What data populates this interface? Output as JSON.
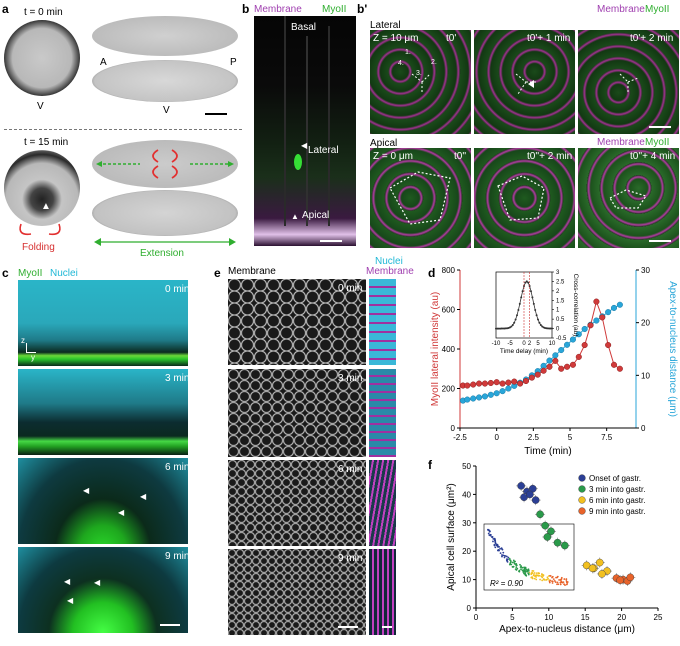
{
  "panels": {
    "a": {
      "letter": "a",
      "t0": "t = 0 min",
      "t15": "t = 15 min",
      "A": "A",
      "P": "P",
      "V1": "V",
      "V2": "V",
      "V3": "V",
      "folding": "Folding",
      "extension": "Extension"
    },
    "b": {
      "letter": "b",
      "membrane": "Membrane",
      "myoii": "MyoII",
      "basal": "Basal",
      "lateral": "Lateral",
      "apical": "Apical"
    },
    "bp": {
      "letter": "b'",
      "lateral_title": "Lateral",
      "apical_title": "Apical",
      "membrane": "Membrane",
      "myoii": "MyoII",
      "membrane2": "Membrane",
      "myoii2": "MyoII",
      "z1": "Z = 10 μm",
      "z2": "Z = 0 μm",
      "t_lat": [
        "t0'",
        "t0'+ 1 min",
        "t0'+ 2 min"
      ],
      "t_api": [
        "t0''",
        "t0''+ 2 min",
        "t0''+ 4 min"
      ],
      "nums": [
        "1.",
        "2.",
        "3.",
        "4."
      ]
    },
    "c": {
      "letter": "c",
      "myoii": "MyoII",
      "nuclei": "Nuclei",
      "times": [
        "0 min",
        "3 min",
        "6 min",
        "9 min"
      ],
      "axis_z": "z",
      "axis_y": "y"
    },
    "e": {
      "letter": "e",
      "membrane": "Membrane",
      "nuclei": "Nuclei",
      "membrane2": "Membrane",
      "times": [
        "0 min",
        "3 min",
        "6 min",
        "9 min"
      ]
    },
    "d": {
      "letter": "d",
      "inset_ylabel": "Cross-correlation (au)",
      "inset_xlabel": "Time delay (min)"
    },
    "f": {
      "letter": "f",
      "inset_r2": "R² = 0.90"
    }
  },
  "chart_data": [
    {
      "id": "d",
      "type": "line",
      "xlabel": "Time (min)",
      "ylabel": "MyoII lateral intensity (au)",
      "ylabel2": "Apex-to-nucleus distance (μm)",
      "xlim": [
        -2.5,
        9.5
      ],
      "ylim": [
        0,
        800
      ],
      "y2lim": [
        0,
        30
      ],
      "xticks": [
        "-2.5",
        "0",
        "2.5",
        "5",
        "7.5"
      ],
      "xtick_values": [
        -2.5,
        0,
        2.5,
        5,
        7.5
      ],
      "yticks": [
        "0",
        "200",
        "400",
        "600",
        "800"
      ],
      "y2ticks": [
        "0",
        "10",
        "20",
        "30"
      ],
      "color1": "#d03a3a",
      "color2": "#29a6d9",
      "series": [
        {
          "name": "MyoII lateral intensity",
          "axis": "left",
          "x": [
            -2.3,
            -2.0,
            -1.6,
            -1.2,
            -0.8,
            -0.4,
            0.0,
            0.4,
            0.8,
            1.2,
            1.6,
            2.0,
            2.4,
            2.8,
            3.2,
            3.6,
            4.0,
            4.4,
            4.8,
            5.2,
            5.6,
            6.0,
            6.4,
            6.8,
            7.2,
            7.6,
            8.0,
            8.4
          ],
          "y": [
            215,
            215,
            220,
            225,
            225,
            228,
            232,
            225,
            230,
            235,
            225,
            238,
            255,
            270,
            290,
            310,
            340,
            300,
            310,
            320,
            360,
            420,
            520,
            640,
            560,
            420,
            320,
            300
          ]
        },
        {
          "name": "Apex-to-nucleus distance",
          "axis": "right",
          "x": [
            -2.3,
            -2.0,
            -1.6,
            -1.2,
            -0.8,
            -0.4,
            0.0,
            0.4,
            0.8,
            1.2,
            1.6,
            2.0,
            2.4,
            2.8,
            3.2,
            3.6,
            4.0,
            4.4,
            4.8,
            5.2,
            5.6,
            6.0,
            6.4,
            6.8,
            7.2,
            7.6,
            8.0,
            8.4
          ],
          "y": [
            5.2,
            5.4,
            5.6,
            5.8,
            6.0,
            6.3,
            6.6,
            7.0,
            7.5,
            8.0,
            8.6,
            9.2,
            10.0,
            10.8,
            11.8,
            12.8,
            13.8,
            14.8,
            15.8,
            16.8,
            17.8,
            18.8,
            19.6,
            20.4,
            21.2,
            22.0,
            22.8,
            23.4
          ]
        }
      ],
      "inset": {
        "type": "line",
        "xlim": [
          -10,
          10
        ],
        "ylim": [
          -0.5,
          3.0
        ],
        "xticks": [
          "-10",
          "-5",
          "0",
          "2",
          "5",
          "10"
        ],
        "xtick_values": [
          -10,
          -5,
          0,
          2,
          5,
          10
        ],
        "yticks": [
          "-0.5",
          "0",
          "0.5",
          "1",
          "1.5",
          "2",
          "2.5",
          "3"
        ],
        "ytick_values": [
          -0.5,
          0,
          0.5,
          1,
          1.5,
          2,
          2.5,
          3
        ],
        "peak_x": 1.0,
        "peak_y": 2.5,
        "sigma": 2.2
      }
    },
    {
      "id": "f",
      "type": "scatter",
      "xlabel": "Apex-to-nucleus distance (μm)",
      "ylabel": "Apical cell surface (μm²)",
      "xlim": [
        0,
        25
      ],
      "ylim": [
        0,
        50
      ],
      "xticks": [
        "0",
        "5",
        "10",
        "15",
        "20",
        "25"
      ],
      "yticks": [
        "0",
        "10",
        "20",
        "30",
        "40",
        "50"
      ],
      "series": [
        {
          "name": "Onset of gastr.",
          "color": "#2b3f95",
          "x": [
            6.2,
            7.0,
            7.8,
            6.6,
            7.4,
            8.2
          ],
          "y": [
            43,
            41,
            42,
            39,
            40,
            38
          ]
        },
        {
          "name": "3 min into gastr.",
          "color": "#2a9a4a",
          "x": [
            8.8,
            9.5,
            10.3,
            11.2,
            9.8,
            12.2
          ],
          "y": [
            33,
            29,
            27,
            23,
            25,
            22
          ]
        },
        {
          "name": "6 min into gastr.",
          "color": "#f2c020",
          "x": [
            15.2,
            16.2,
            17.0,
            18.0,
            17.3,
            16.0
          ],
          "y": [
            15,
            14,
            16,
            13,
            12,
            14
          ]
        },
        {
          "name": "9 min into gastr.",
          "color": "#e8632a",
          "x": [
            19.3,
            20.2,
            20.8,
            19.8,
            21.2
          ],
          "y": [
            10.5,
            10,
            9.5,
            9.8,
            10.8
          ]
        }
      ],
      "legend": "top-right"
    }
  ]
}
